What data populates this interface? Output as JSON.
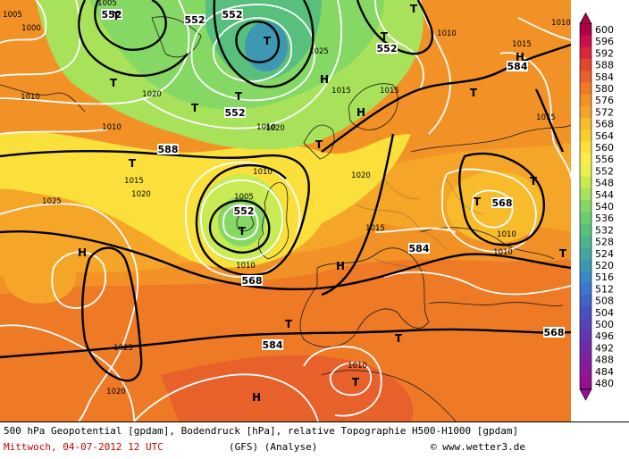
{
  "map": {
    "pressure_labels": [
      "1005",
      "1000",
      "1005",
      "1010",
      "1010",
      "1015",
      "1020",
      "1025",
      "1010",
      "1015",
      "1020",
      "1025",
      "1010",
      "1020",
      "1015",
      "1005",
      "1010",
      "1015",
      "1010",
      "1015",
      "1010",
      "1025",
      "1020",
      "1010",
      "1015",
      "1010",
      "1020",
      "1010",
      "1010",
      "1015",
      "1025"
    ],
    "geopotential_labels": [
      "552",
      "552",
      "552",
      "552",
      "552",
      "588",
      "568",
      "568",
      "552",
      "584",
      "584",
      "584",
      "568",
      "584"
    ],
    "tief_symbol": "T",
    "hoch_symbol": "H"
  },
  "legend": {
    "values": [
      "600",
      "596",
      "592",
      "588",
      "584",
      "580",
      "576",
      "572",
      "568",
      "564",
      "560",
      "556",
      "552",
      "548",
      "544",
      "540",
      "536",
      "532",
      "528",
      "524",
      "520",
      "516",
      "512",
      "508",
      "504",
      "500",
      "496",
      "492",
      "488",
      "484",
      "480"
    ],
    "colors": [
      "#b0004a",
      "#c8104a",
      "#d8283c",
      "#e0482e",
      "#e8602a",
      "#ee7a26",
      "#f29226",
      "#f5a628",
      "#f7bb2c",
      "#f9ce30",
      "#fbe03c",
      "#fcee4a",
      "#e8f050",
      "#c8ea52",
      "#a8e25a",
      "#86d864",
      "#6ccc70",
      "#58c07c",
      "#4cb48c",
      "#44a8a0",
      "#3e98b4",
      "#3a88c8",
      "#3c76d0",
      "#4064c8",
      "#4852c0",
      "#5444b8",
      "#6236b0",
      "#702aa8",
      "#7e20a0",
      "#8a1898",
      "#941090"
    ]
  },
  "footer": {
    "line1": "500 hPa Geopotential [gpdam], Bodendruck [hPa], relative Topographie H500-H1000 [gpdam]",
    "date": "Mittwoch, 04-07-2012  12 UTC",
    "model": "(GFS)  (Analyse)",
    "copyright": "© www.wetter3.de"
  }
}
